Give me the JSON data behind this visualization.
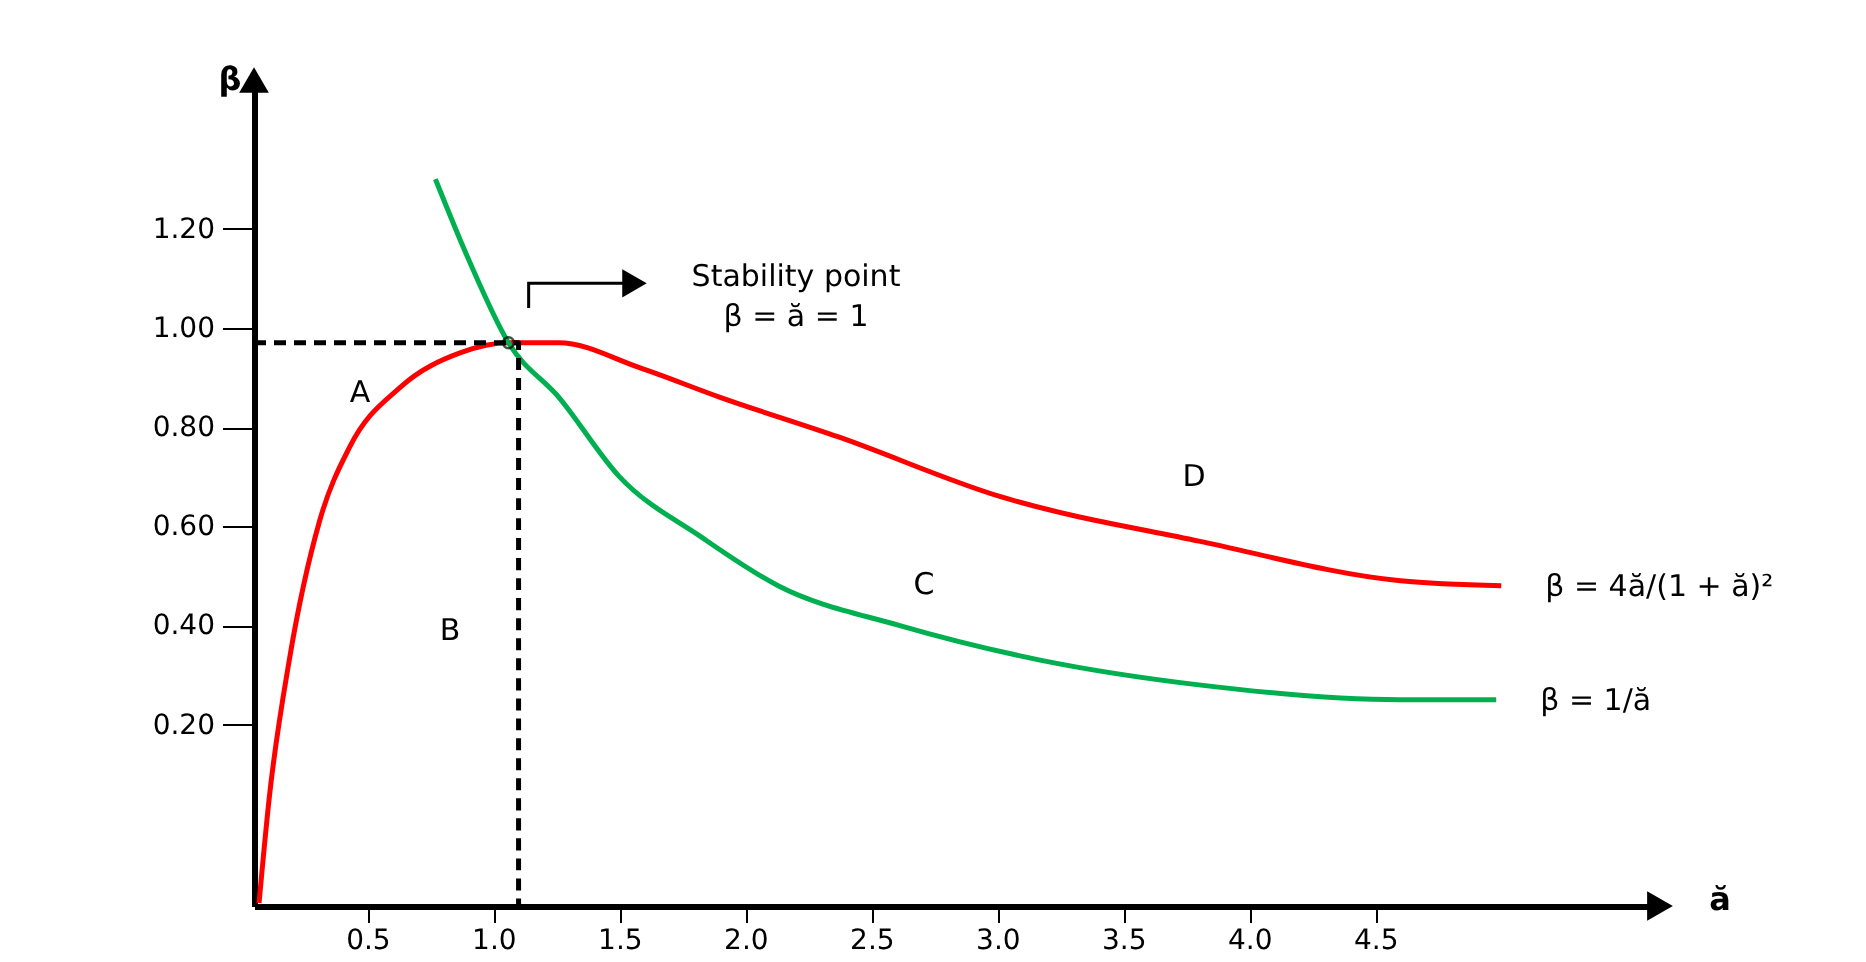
{
  "chart_data": {
    "type": "line",
    "xlabel": "ă",
    "ylabel": "β",
    "xlim": [
      0.05,
      5.63
    ],
    "ylim": [
      -0.166,
      1.5
    ],
    "xticks": [
      0.5,
      {
        "value": 1,
        "label": "1.0"
      },
      1.5,
      {
        "value": 2,
        "label": "2.0"
      },
      2.5,
      {
        "value": 3,
        "label": "3.0"
      },
      3.5,
      {
        "value": 4,
        "label": "4.0"
      },
      4.5
    ],
    "yticks": [
      {
        "value": 0.2,
        "label": "0.20"
      },
      {
        "value": 0.4,
        "label": "0.40"
      },
      {
        "value": 0.6,
        "label": "0.60"
      },
      {
        "value": 0.8,
        "label": "0.80"
      },
      {
        "value": 1,
        "label": "1.00"
      },
      {
        "value": 1.2,
        "label": "1.20"
      }
    ],
    "grid": false,
    "series": [
      {
        "name": "β = 4ă/(1 + ă)²",
        "color": "#ff0000",
        "x": [
          0.07,
          0.11,
          0.19,
          0.31,
          0.43,
          0.63,
          0.87,
          1.06,
          1.26,
          1.58,
          1.9,
          2.37,
          3.01,
          3.8,
          4.6,
          5.0
        ],
        "values": [
          -0.16,
          0.05,
          0.33,
          0.61,
          0.76,
          0.88,
          0.95,
          0.97,
          0.97,
          0.92,
          0.86,
          0.78,
          0.66,
          0.57,
          0.49,
          0.48
        ]
      },
      {
        "name": "β = 1/ă",
        "color": "#00b050",
        "x": [
          0.77,
          0.9,
          1.06,
          1.26,
          1.5,
          1.82,
          2.13,
          2.61,
          3.17,
          3.8,
          4.6,
          4.98
        ],
        "values": [
          1.3,
          1.14,
          0.97,
          0.86,
          0.7,
          0.58,
          0.48,
          0.4,
          0.33,
          0.28,
          0.25,
          0.25
        ]
      },
      {
        "color": "#000000",
        "line_style": "dashed",
        "x": [
          0.05,
          1.1,
          1.1
        ],
        "values": [
          0.97,
          0.97,
          -0.166
        ]
      },
      {
        "type": "scatter",
        "marker": "circle",
        "color": "#000000",
        "x": [
          1.06
        ],
        "values": [
          0.97
        ]
      }
    ],
    "annotations": [
      "Stability point",
      "β = ă = 1",
      "A",
      "B",
      "C",
      "D"
    ]
  }
}
